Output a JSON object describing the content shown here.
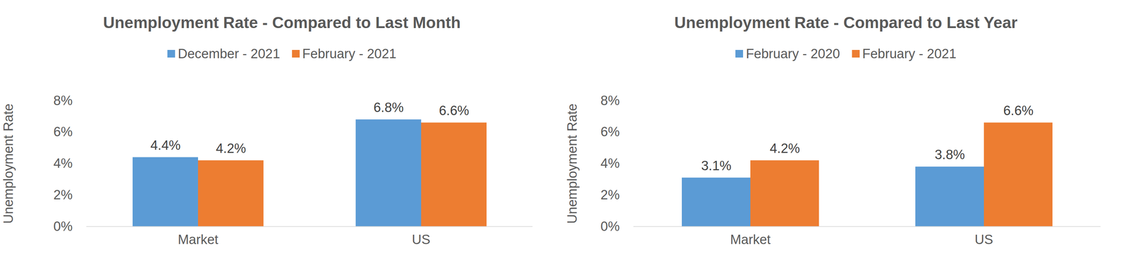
{
  "chart_data": [
    {
      "type": "bar",
      "title": "Unemployment Rate - Compared to Last Month",
      "y_label": "Unemployment Rate",
      "categories": [
        "Market",
        "US"
      ],
      "series": [
        {
          "name": "December - 2021",
          "color": "#5b9bd5",
          "values": [
            4.4,
            6.8
          ],
          "value_labels": [
            "4.4%",
            "6.8%"
          ]
        },
        {
          "name": "February - 2021",
          "color": "#ed7d31",
          "values": [
            4.2,
            6.6
          ],
          "value_labels": [
            "4.2%",
            "6.6%"
          ]
        }
      ],
      "ylim": [
        0,
        8
      ],
      "yticks": [
        {
          "value": 0,
          "label": "0%"
        },
        {
          "value": 2,
          "label": "2%"
        },
        {
          "value": 4,
          "label": "4%"
        },
        {
          "value": 6,
          "label": "6%"
        },
        {
          "value": 8,
          "label": "8%"
        }
      ],
      "grid": false,
      "legend": "top",
      "data_labels": true
    },
    {
      "type": "bar",
      "title": "Unemployment Rate - Compared to Last Year",
      "y_label": "Unemployment Rate",
      "categories": [
        "Market",
        "US"
      ],
      "series": [
        {
          "name": "February - 2020",
          "color": "#5b9bd5",
          "values": [
            3.1,
            3.8
          ],
          "value_labels": [
            "3.1%",
            "3.8%"
          ]
        },
        {
          "name": "February - 2021",
          "color": "#ed7d31",
          "values": [
            4.2,
            6.6
          ],
          "value_labels": [
            "4.2%",
            "6.6%"
          ]
        }
      ],
      "ylim": [
        0,
        8
      ],
      "yticks": [
        {
          "value": 0,
          "label": "0%"
        },
        {
          "value": 2,
          "label": "2%"
        },
        {
          "value": 4,
          "label": "4%"
        },
        {
          "value": 6,
          "label": "6%"
        },
        {
          "value": 8,
          "label": "8%"
        }
      ],
      "grid": false,
      "legend": "top",
      "data_labels": true
    }
  ]
}
